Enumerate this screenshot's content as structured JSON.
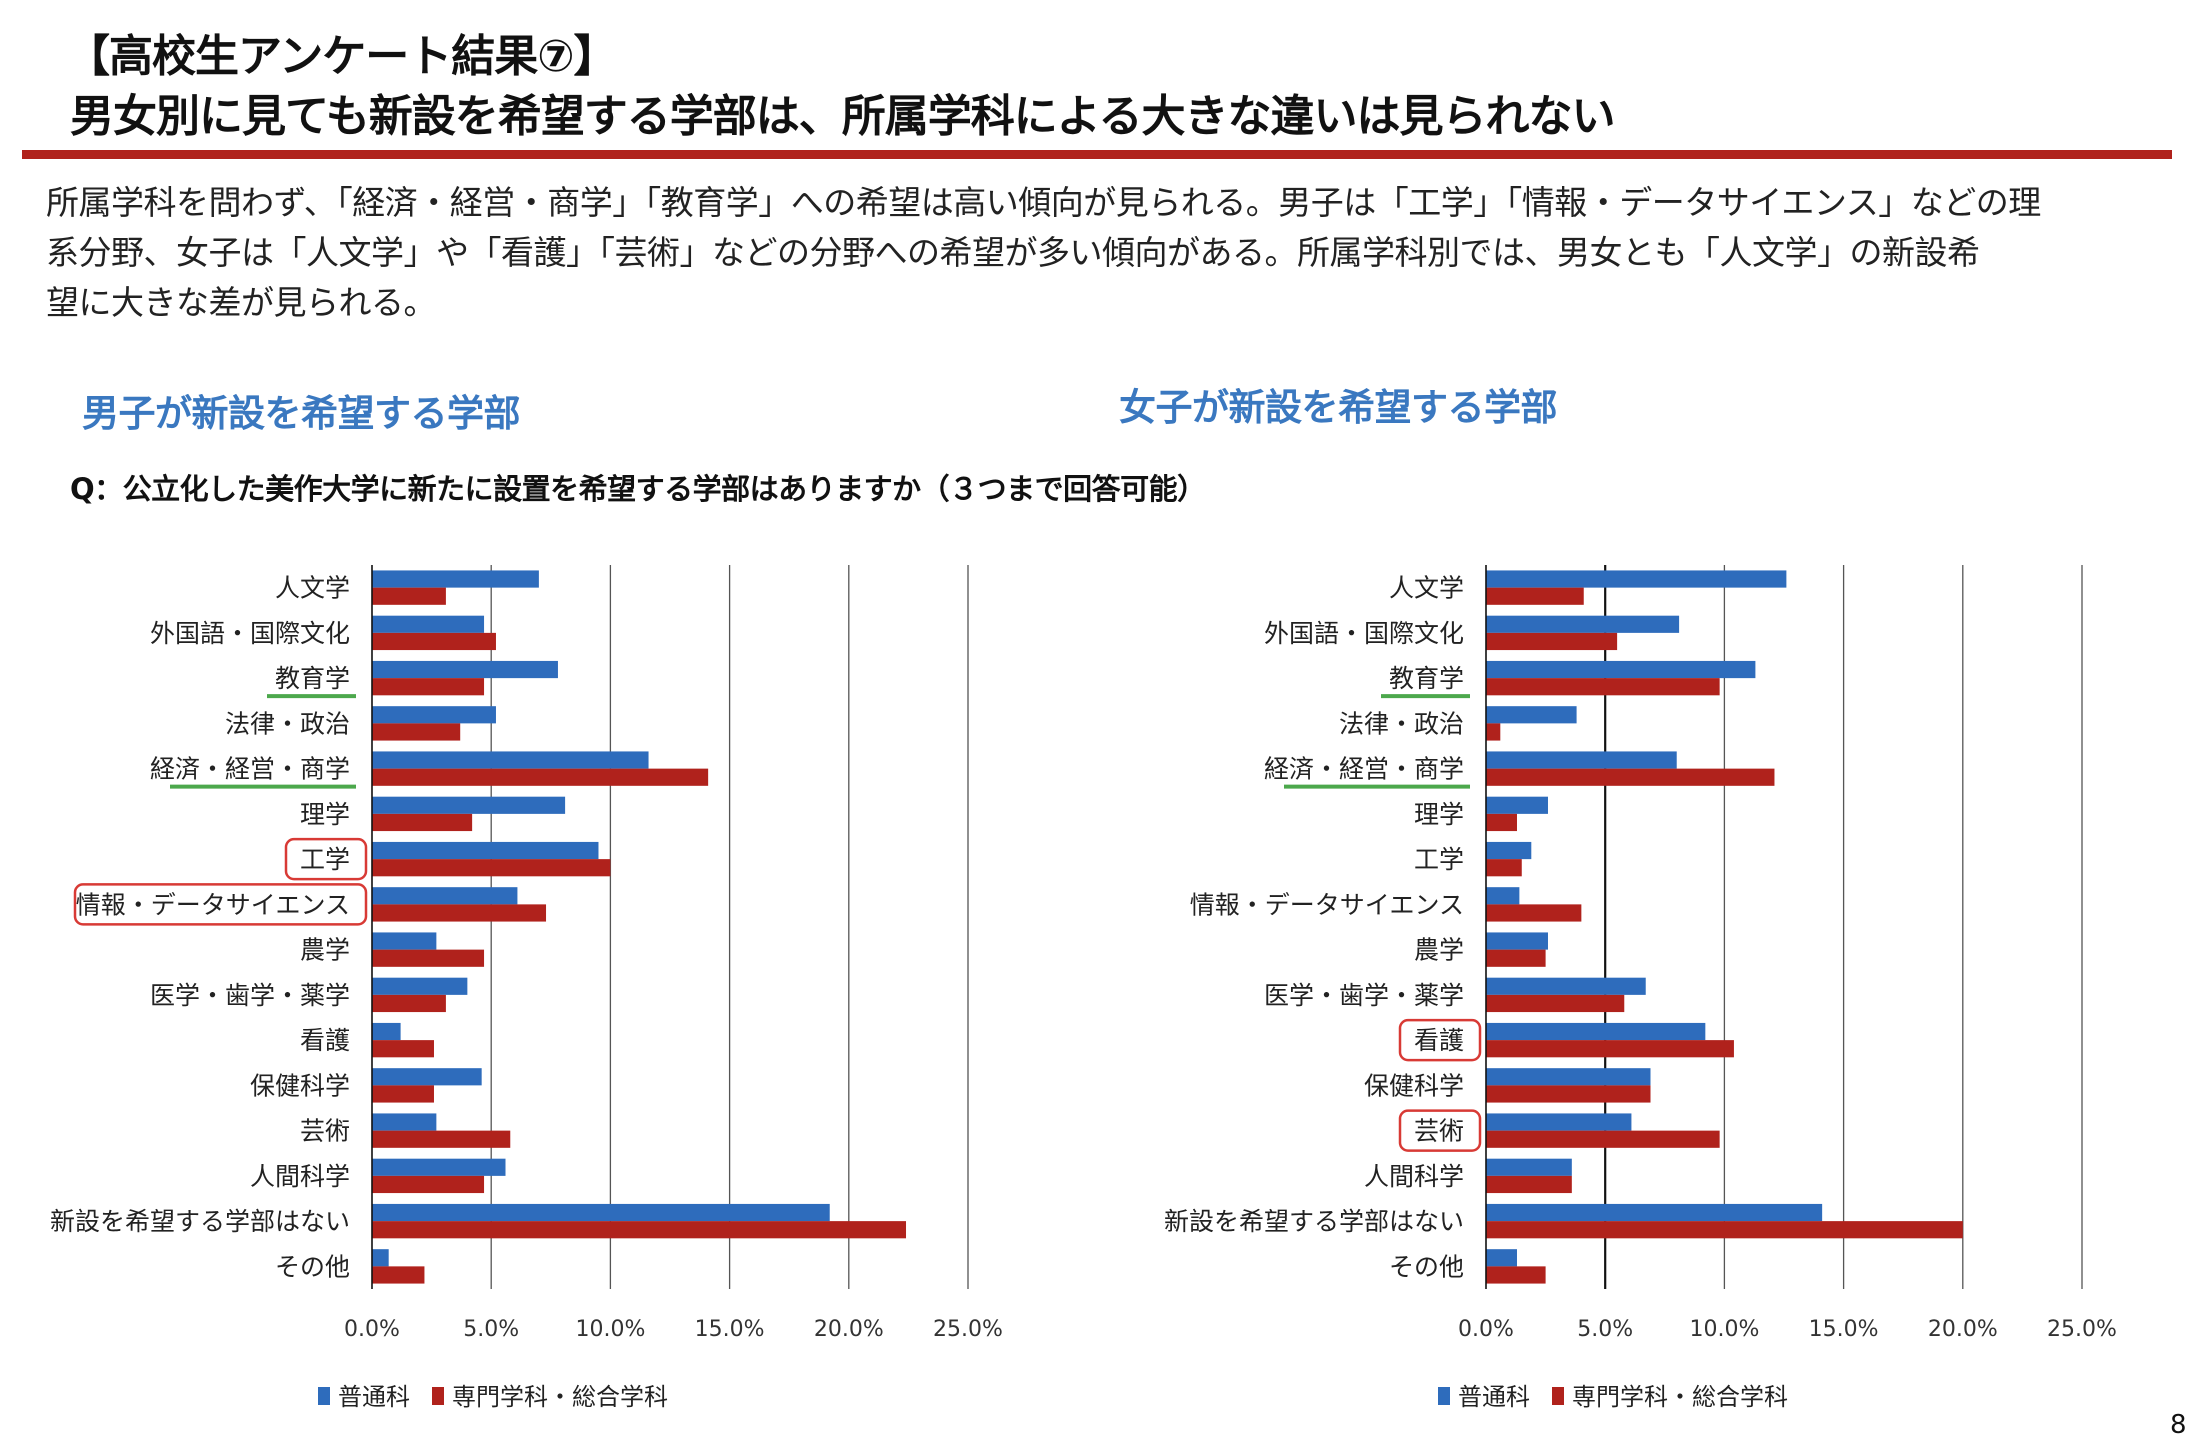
{
  "slide": {
    "title_line1": "【高校生アンケート結果⑦】",
    "title_line2": "男女別に見ても新設を希望する学部は、所属学科による大きな違いは見られない",
    "body_lines": [
      "所属学科を問わず、「経済・経営・商学」「教育学」への希望は高い傾向が見られる。男子は「工学」「情報・データサイエンス」などの理",
      "系分野、女子は「人文学」や「看護」「芸術」などの分野への希望が多い傾向がある。所属学科別では、男女とも「人文学」の新設希",
      "望に大きな差が見られる。"
    ],
    "question": "Q：公立化した美作大学に新たに設置を希望する学部はありますか（３つまで回答可能）",
    "page_number": "8",
    "accent_color": "#B0221C",
    "heading_color": "#3A78C0"
  },
  "chart_data": [
    {
      "type": "bar",
      "orientation": "horizontal",
      "title": "男子が新設を希望する学部",
      "categories": [
        "人文学",
        "外国語・国際文化",
        "教育学",
        "法律・政治",
        "経済・経営・商学",
        "理学",
        "工学",
        "情報・データサイエンス",
        "農学",
        "医学・歯学・薬学",
        "看護",
        "保健科学",
        "芸術",
        "人間科学",
        "新設を希望する学部はない",
        "その他"
      ],
      "series": [
        {
          "name": "普通科",
          "color": "#2E6CBC",
          "values": [
            7.0,
            4.7,
            7.8,
            5.2,
            11.6,
            8.1,
            9.5,
            6.1,
            2.7,
            4.0,
            1.2,
            4.6,
            2.7,
            5.6,
            19.2,
            0.7
          ]
        },
        {
          "name": "専門学科・総合学科",
          "color": "#B0221C",
          "values": [
            3.1,
            5.2,
            4.7,
            3.7,
            14.1,
            4.2,
            10.0,
            7.3,
            4.7,
            3.1,
            2.6,
            2.6,
            5.8,
            4.7,
            22.4,
            2.2
          ]
        }
      ],
      "xlim": [
        0,
        25
      ],
      "xticks": [
        "0.0%",
        "5.0%",
        "10.0%",
        "15.0%",
        "20.0%",
        "25.0%"
      ],
      "grid": true,
      "legend": "bottom",
      "underlined_categories": [
        "教育学",
        "経済・経営・商学"
      ],
      "boxed_categories": [
        "工学",
        "情報・データサイエンス"
      ],
      "underline_color": "#4CA84C",
      "box_color": "#D83A35"
    },
    {
      "type": "bar",
      "orientation": "horizontal",
      "title": "女子が新設を希望する学部",
      "categories": [
        "人文学",
        "外国語・国際文化",
        "教育学",
        "法律・政治",
        "経済・経営・商学",
        "理学",
        "工学",
        "情報・データサイエンス",
        "農学",
        "医学・歯学・薬学",
        "看護",
        "保健科学",
        "芸術",
        "人間科学",
        "新設を希望する学部はない",
        "その他"
      ],
      "series": [
        {
          "name": "普通科",
          "color": "#2E6CBC",
          "values": [
            12.6,
            8.1,
            11.3,
            3.8,
            8.0,
            2.6,
            1.9,
            1.4,
            2.6,
            6.7,
            9.2,
            6.9,
            6.1,
            3.6,
            14.1,
            1.3
          ]
        },
        {
          "name": "専門学科・総合学科",
          "color": "#B0221C",
          "values": [
            4.1,
            5.5,
            9.8,
            0.6,
            12.1,
            1.3,
            1.5,
            4.0,
            2.5,
            5.8,
            10.4,
            6.9,
            9.8,
            3.6,
            20.0,
            2.5
          ]
        }
      ],
      "xlim": [
        0,
        25
      ],
      "xticks": [
        "0.0%",
        "5.0%",
        "10.0%",
        "15.0%",
        "20.0%",
        "25.0%"
      ],
      "grid": true,
      "legend": "bottom",
      "underlined_categories": [
        "教育学",
        "経済・経営・商学"
      ],
      "boxed_categories": [
        "看護",
        "芸術"
      ],
      "underline_color": "#4CA84C",
      "box_color": "#D83A35"
    }
  ]
}
